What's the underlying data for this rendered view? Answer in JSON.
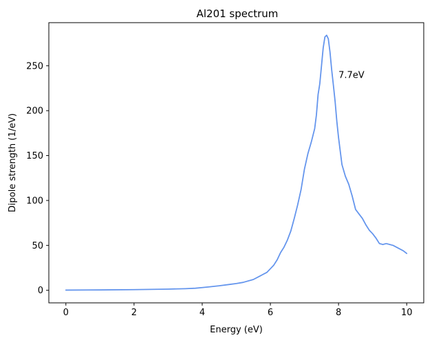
{
  "chart_data": {
    "type": "line",
    "title": "Al201 spectrum",
    "xlabel": "Energy (eV)",
    "ylabel": "Dipole strength (1/eV)",
    "xlim": [
      -0.5,
      10.5
    ],
    "ylim": [
      -14,
      298
    ],
    "xticks": [
      0,
      2,
      4,
      6,
      8,
      10
    ],
    "yticks": [
      0,
      50,
      100,
      150,
      200,
      250
    ],
    "grid": false,
    "line_color": "#6495ED",
    "series": [
      {
        "name": "Al201",
        "x": [
          0,
          1,
          2,
          2.5,
          3,
          3.5,
          3.8,
          4.0,
          4.2,
          4.5,
          4.8,
          5.0,
          5.2,
          5.5,
          5.7,
          5.9,
          6.0,
          6.1,
          6.2,
          6.3,
          6.4,
          6.5,
          6.6,
          6.7,
          6.8,
          6.9,
          7.0,
          7.1,
          7.2,
          7.3,
          7.35,
          7.4,
          7.45,
          7.5,
          7.55,
          7.6,
          7.65,
          7.7,
          7.75,
          7.8,
          7.85,
          7.9,
          7.95,
          8.0,
          8.05,
          8.1,
          8.2,
          8.3,
          8.4,
          8.5,
          8.6,
          8.7,
          8.8,
          8.9,
          9.0,
          9.1,
          9.2,
          9.3,
          9.4,
          9.5,
          9.6,
          9.7,
          9.8,
          9.9,
          10.0
        ],
        "values": [
          0.2,
          0.4,
          0.7,
          1.0,
          1.3,
          1.8,
          2.3,
          3.0,
          3.8,
          5.0,
          6.5,
          7.5,
          8.8,
          12,
          16,
          20,
          24,
          28,
          34,
          42,
          48,
          56,
          66,
          80,
          95,
          112,
          135,
          152,
          165,
          180,
          195,
          218,
          230,
          250,
          270,
          282,
          284,
          280,
          265,
          245,
          228,
          210,
          188,
          170,
          155,
          140,
          127,
          118,
          105,
          90,
          85,
          80,
          73,
          67,
          63,
          58,
          52,
          51,
          52,
          51,
          50,
          48,
          46,
          44,
          41
        ]
      }
    ],
    "annotations": [
      {
        "text": "7.7eV",
        "x": 8.0,
        "y": 240
      }
    ]
  }
}
